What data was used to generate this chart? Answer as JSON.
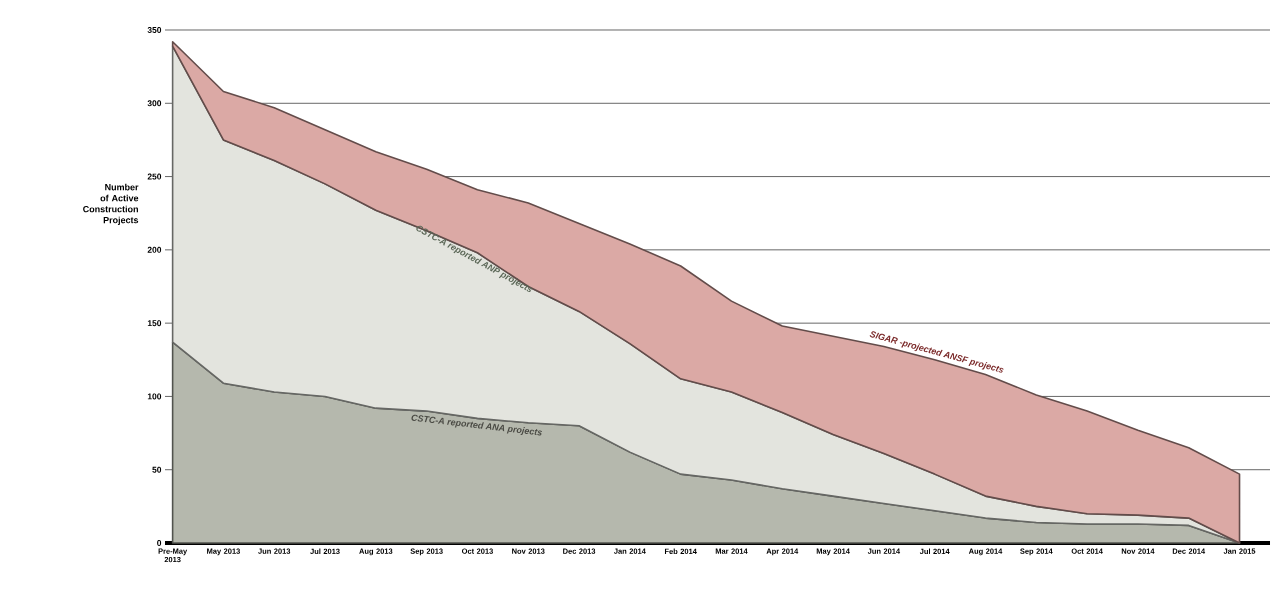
{
  "chart_data": {
    "type": "area",
    "stacked": true,
    "ylabel": "Number of Active Construction Projects",
    "categories": [
      "Pre-May 2013",
      "May 2013",
      "Jun 2013",
      "Jul 2013",
      "Aug 2013",
      "Sep 2013",
      "Oct 2013",
      "Nov 2013",
      "Dec 2013",
      "Jan 2014",
      "Feb 2014",
      "Mar 2014",
      "Apr 2014",
      "May 2014",
      "Jun 2014",
      "Jul 2014",
      "Aug 2014",
      "Sep 2014",
      "Oct 2014",
      "Nov 2014",
      "Dec 2014",
      "Jan 2015"
    ],
    "series": [
      {
        "name": "CSTC-A reported ANA projects",
        "color": "#b5b8ad",
        "values": [
          137,
          109,
          103,
          100,
          92,
          90,
          85,
          82,
          80,
          62,
          47,
          43,
          37,
          32,
          27,
          22,
          17,
          14,
          13,
          13,
          12,
          0
        ]
      },
      {
        "name": "CSTC-A reported ANP projects",
        "color": "#e3e4de",
        "values": [
          202,
          166,
          158,
          145,
          135,
          123,
          113,
          93,
          78,
          74,
          65,
          60,
          52,
          42,
          34,
          25,
          15,
          11,
          7,
          6,
          5,
          0
        ]
      },
      {
        "name": "SIGAR -projected ANSF projects",
        "color": "#dba9a5",
        "values": [
          3,
          33,
          36,
          37,
          40,
          42,
          43,
          57,
          60,
          68,
          77,
          62,
          59,
          67,
          73,
          78,
          83,
          76,
          70,
          58,
          48,
          47
        ]
      }
    ],
    "ylim": [
      0,
      350
    ],
    "yticks": [
      0,
      50,
      100,
      150,
      200,
      250,
      300,
      350
    ],
    "grid": "y"
  }
}
